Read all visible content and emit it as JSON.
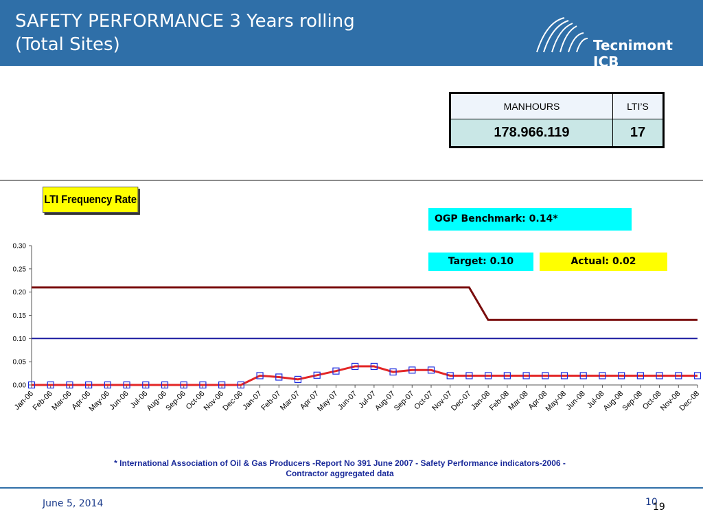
{
  "slide": {
    "title": "SAFETY PERFORMANCE  3 Years rolling\n(Total Sites)",
    "logo_text": "Tecnimont ICB",
    "date": "June 5, 2014",
    "page_number": "10",
    "page_number_overlay": "19",
    "footnote": "* International Association of Oil & Gas Producers -Report No 391 June 2007 -  Safety Performance indicators-2006 - Contractor aggregated data"
  },
  "stats_table": {
    "headers": [
      "MANHOURS",
      "LTI’S"
    ],
    "values": [
      "178.966.119",
      "17"
    ]
  },
  "callouts": {
    "benchmark": "OGP Benchmark: 0.14*",
    "target": "Target: 0.10",
    "actual": "Actual: 0.02"
  },
  "colors": {
    "header_bg": "#2f6fa8",
    "benchmark_line": "#7a0d0d",
    "target_line": "#1a1aa0",
    "actual_line": "#e32626",
    "marker": "#1a2adf",
    "cyan": "#00ffff",
    "yellow": "#ffff00"
  },
  "chart_data": {
    "type": "line",
    "title": "LTI Frequency Rate",
    "xlabel": "",
    "ylabel": "",
    "ylim": [
      0,
      0.3
    ],
    "yticks": [
      "0.00",
      "0.05",
      "0.10",
      "0.15",
      "0.20",
      "0.25",
      "0.30"
    ],
    "grid": false,
    "categories": [
      "Jan-06",
      "Feb-06",
      "Mar-06",
      "Apr-06",
      "May-06",
      "Jun-06",
      "Jul-06",
      "Aug-06",
      "Sep-06",
      "Oct-06",
      "Nov-06",
      "Dec-06",
      "Jan-07",
      "Feb-07",
      "Mar-07",
      "Apr-07",
      "May-07",
      "Jun-07",
      "Jul-07",
      "Aug-07",
      "Sep-07",
      "Oct-07",
      "Nov-07",
      "Dec-07",
      "Jan-08",
      "Feb-08",
      "Mar-08",
      "Apr-08",
      "May-08",
      "Jun-08",
      "Jul-08",
      "Aug-08",
      "Sep-08",
      "Oct-08",
      "Nov-08",
      "Dec-08"
    ],
    "series": [
      {
        "key": "benchmark",
        "values": [
          0.21,
          0.21,
          0.21,
          0.21,
          0.21,
          0.21,
          0.21,
          0.21,
          0.21,
          0.21,
          0.21,
          0.21,
          0.21,
          0.21,
          0.21,
          0.21,
          0.21,
          0.21,
          0.21,
          0.21,
          0.21,
          0.21,
          0.21,
          0.21,
          0.14,
          0.14,
          0.14,
          0.14,
          0.14,
          0.14,
          0.14,
          0.14,
          0.14,
          0.14,
          0.14,
          0.14
        ]
      },
      {
        "key": "target",
        "values": [
          0.1,
          0.1,
          0.1,
          0.1,
          0.1,
          0.1,
          0.1,
          0.1,
          0.1,
          0.1,
          0.1,
          0.1,
          0.1,
          0.1,
          0.1,
          0.1,
          0.1,
          0.1,
          0.1,
          0.1,
          0.1,
          0.1,
          0.1,
          0.1,
          0.1,
          0.1,
          0.1,
          0.1,
          0.1,
          0.1,
          0.1,
          0.1,
          0.1,
          0.1,
          0.1,
          0.1
        ]
      },
      {
        "key": "actual",
        "values": [
          0.0,
          0.0,
          0.0,
          0.0,
          0.0,
          0.0,
          0.0,
          0.0,
          0.0,
          0.0,
          0.0,
          0.0,
          0.02,
          0.017,
          0.012,
          0.021,
          0.03,
          0.04,
          0.04,
          0.028,
          0.032,
          0.032,
          0.02,
          0.02,
          0.02,
          0.02,
          0.02,
          0.02,
          0.02,
          0.02,
          0.02,
          0.02,
          0.02,
          0.02,
          0.02,
          0.02
        ]
      }
    ]
  }
}
